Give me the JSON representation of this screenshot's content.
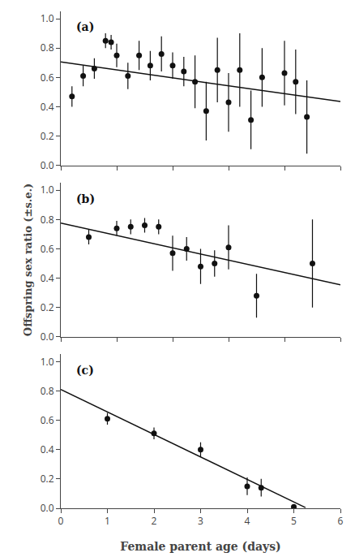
{
  "chart_data": [
    {
      "type": "scatter",
      "label": "(a)",
      "series": [
        {
          "type": "scatter",
          "color": "#111111",
          "x": [
            1,
            2,
            3,
            4,
            4.5,
            5,
            6,
            7,
            8,
            9,
            10,
            11,
            12,
            13,
            14,
            15,
            16,
            17,
            18,
            20,
            21,
            22
          ],
          "values": [
            0.47,
            0.61,
            0.66,
            0.85,
            0.84,
            0.75,
            0.61,
            0.75,
            0.68,
            0.76,
            0.68,
            0.64,
            0.57,
            0.37,
            0.65,
            0.43,
            0.65,
            0.31,
            0.6,
            0.63,
            0.57,
            0.33
          ],
          "yerr": [
            0.07,
            0.07,
            0.07,
            0.05,
            0.05,
            0.08,
            0.09,
            0.1,
            0.1,
            0.12,
            0.09,
            0.1,
            0.18,
            0.2,
            0.22,
            0.2,
            0.25,
            0.2,
            0.2,
            0.22,
            0.22,
            0.25
          ]
        },
        {
          "type": "line",
          "color": "#111111",
          "x": [
            0,
            25
          ],
          "values": [
            0.705,
            0.435
          ]
        }
      ],
      "xlim": [
        0,
        25
      ],
      "ylim": [
        0.0,
        1.05
      ],
      "xticks": [
        0,
        5,
        10,
        15,
        20,
        25
      ],
      "yticks": [
        {
          "value": 0.0,
          "label": "0.0"
        },
        0.2,
        0.4,
        0.6,
        0.8,
        {
          "value": 1.0,
          "label": "1.0"
        }
      ],
      "tick_labels": "y",
      "grid": false
    },
    {
      "type": "scatter",
      "label": "(b)",
      "ylabel": "Offspring sex ratio (±s.e.)",
      "series": [
        {
          "type": "scatter",
          "color": "#111111",
          "x": [
            1,
            2,
            2.5,
            3,
            3.5,
            4,
            4.5,
            5,
            5.5,
            6,
            7,
            9
          ],
          "values": [
            0.68,
            0.74,
            0.75,
            0.76,
            0.75,
            0.57,
            0.6,
            0.48,
            0.5,
            0.61,
            0.28,
            0.5
          ],
          "yerr": [
            0.05,
            0.05,
            0.05,
            0.05,
            0.05,
            0.12,
            0.08,
            0.12,
            0.09,
            0.15,
            0.15,
            0.3
          ]
        },
        {
          "type": "line",
          "color": "#111111",
          "x": [
            0,
            10
          ],
          "values": [
            0.775,
            0.355
          ]
        }
      ],
      "xlim": [
        0,
        10
      ],
      "ylim": [
        0.0,
        1.05
      ],
      "xticks": [
        0,
        2,
        4,
        6,
        8,
        10
      ],
      "yticks": [
        {
          "value": 0.0,
          "label": "0.0"
        },
        0.2,
        0.4,
        0.6,
        0.8,
        {
          "value": 1.0,
          "label": "1.0"
        }
      ],
      "tick_labels": "y",
      "grid": false
    },
    {
      "type": "scatter",
      "label": "(c)",
      "xlabel": "Female parent age (days)",
      "series": [
        {
          "type": "scatter",
          "color": "#111111",
          "x": [
            1,
            2,
            3,
            4,
            4.3,
            5
          ],
          "values": [
            0.61,
            0.51,
            0.4,
            0.15,
            0.14,
            0.01
          ],
          "yerr": [
            0.04,
            0.04,
            0.05,
            0.06,
            0.06,
            0.01
          ]
        },
        {
          "type": "line",
          "color": "#111111",
          "x": [
            0,
            5.25
          ],
          "values": [
            0.81,
            0.005
          ]
        }
      ],
      "xlim": [
        0,
        6
      ],
      "ylim": [
        0.0,
        1.05
      ],
      "xticks": [
        0,
        1,
        2,
        3,
        4,
        5,
        6
      ],
      "yticks": [
        {
          "value": 0.0,
          "label": "0.0"
        },
        0.2,
        0.4,
        0.6,
        0.8,
        {
          "value": 1.0,
          "label": "1.0"
        }
      ],
      "grid": false
    }
  ]
}
